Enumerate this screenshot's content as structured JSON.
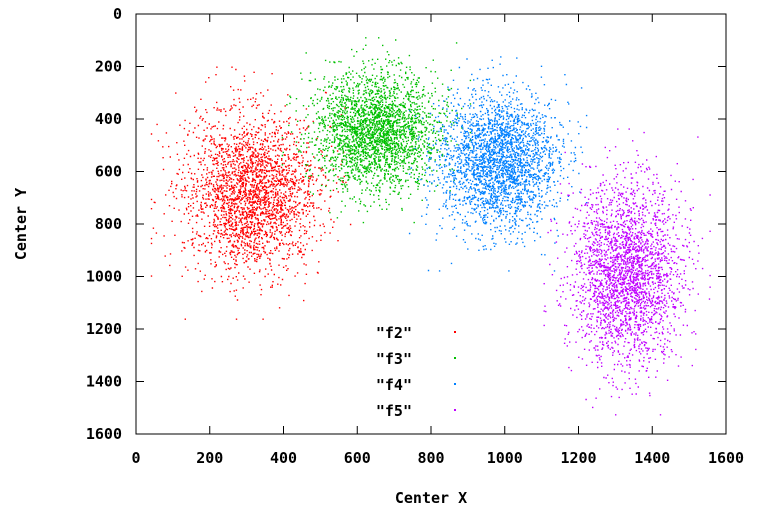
{
  "chart_data": {
    "type": "scatter",
    "xlabel": "Center X",
    "ylabel": "Center Y",
    "xlim": [
      0,
      1600
    ],
    "ylim": [
      1600,
      0
    ],
    "y_axis_inverted": true,
    "x_ticks": [
      "0",
      "200",
      "400",
      "600",
      "800",
      "1000",
      "1200",
      "1400",
      "1600"
    ],
    "y_ticks": [
      "0",
      "200",
      "400",
      "600",
      "800",
      "1000",
      "1200",
      "1400",
      "1600"
    ],
    "grid": false,
    "legend_position": "bottom-center",
    "series": [
      {
        "name": "\"f2\"",
        "color": "#ff0000",
        "center": [
          310,
          680
        ],
        "spread": [
          90,
          150
        ],
        "count": 2600
      },
      {
        "name": "\"f3\"",
        "color": "#00c000",
        "center": [
          650,
          440
        ],
        "spread": [
          85,
          110
        ],
        "count": 2600
      },
      {
        "name": "\"f4\"",
        "color": "#0080ff",
        "center": [
          980,
          560
        ],
        "spread": [
          80,
          130
        ],
        "count": 2600
      },
      {
        "name": "\"f5\"",
        "color": "#c000ff",
        "center": [
          1330,
          980
        ],
        "spread": [
          75,
          170
        ],
        "count": 2600
      }
    ]
  }
}
